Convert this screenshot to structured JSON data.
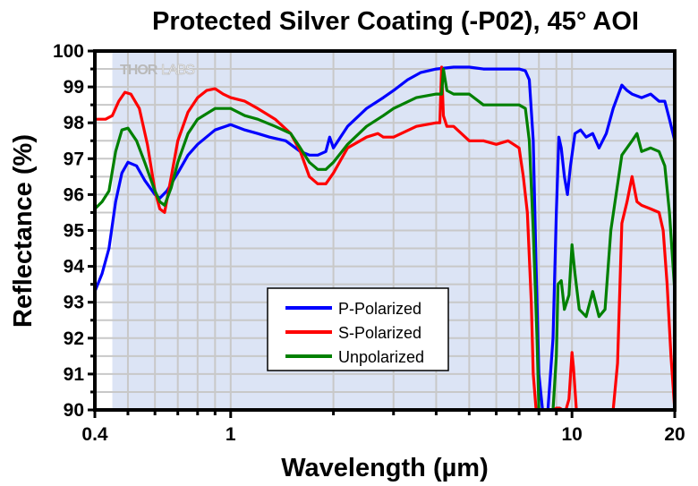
{
  "chart_data": {
    "type": "line",
    "title": "Protected Silver Coating (-P02), 45° AOI",
    "xlabel": "Wavelength (µm)",
    "ylabel": "Reflectance (%)",
    "xscale": "log",
    "xlim": [
      0.4,
      20
    ],
    "ylim": [
      90,
      100
    ],
    "shaded_band_x": [
      0.45,
      20
    ],
    "watermark": [
      "THOR",
      "LABS"
    ],
    "grid": true,
    "x_ticks": [
      {
        "value": 0.4,
        "label": "0.4"
      },
      {
        "value": 1,
        "label": "1"
      },
      {
        "value": 10,
        "label": "10"
      },
      {
        "value": 20,
        "label": "20"
      }
    ],
    "x_minor_ticks": [
      0.5,
      0.6,
      0.7,
      0.8,
      0.9,
      2,
      3,
      4,
      5,
      6,
      7,
      8,
      9
    ],
    "y_ticks": [
      {
        "value": 90,
        "label": "90"
      },
      {
        "value": 91,
        "label": "91"
      },
      {
        "value": 92,
        "label": "92"
      },
      {
        "value": 93,
        "label": "93"
      },
      {
        "value": 94,
        "label": "94"
      },
      {
        "value": 95,
        "label": "95"
      },
      {
        "value": 96,
        "label": "96"
      },
      {
        "value": 97,
        "label": "97"
      },
      {
        "value": 98,
        "label": "98"
      },
      {
        "value": 99,
        "label": "99"
      },
      {
        "value": 100,
        "label": "100"
      }
    ],
    "legend_position": "center-bottom",
    "series": [
      {
        "name": "P-Polarized",
        "color": "#0000ff",
        "x": [
          0.4,
          0.42,
          0.44,
          0.46,
          0.48,
          0.5,
          0.53,
          0.56,
          0.6,
          0.62,
          0.65,
          0.7,
          0.75,
          0.8,
          0.9,
          1.0,
          1.1,
          1.2,
          1.3,
          1.45,
          1.6,
          1.7,
          1.8,
          1.9,
          1.95,
          2.0,
          2.2,
          2.5,
          2.8,
          3.0,
          3.3,
          3.6,
          4.0,
          4.5,
          5.0,
          5.5,
          6.0,
          6.5,
          7.0,
          7.3,
          7.5,
          7.7,
          7.85,
          8.0,
          8.2,
          8.5,
          8.8,
          9.0,
          9.15,
          9.3,
          9.5,
          9.7,
          9.9,
          10.2,
          10.6,
          11.0,
          11.5,
          12.0,
          12.6,
          13.2,
          14.0,
          14.5,
          15.0,
          16.0,
          17.0,
          18.0,
          18.7,
          19.3,
          20.0
        ],
        "y": [
          93.3,
          93.8,
          94.5,
          95.8,
          96.6,
          96.9,
          96.8,
          96.4,
          96.0,
          95.9,
          96.1,
          96.6,
          97.1,
          97.4,
          97.8,
          97.95,
          97.8,
          97.7,
          97.6,
          97.5,
          97.2,
          97.1,
          97.1,
          97.2,
          97.6,
          97.3,
          97.9,
          98.4,
          98.7,
          98.9,
          99.2,
          99.4,
          99.5,
          99.55,
          99.55,
          99.5,
          99.5,
          99.5,
          99.5,
          99.45,
          99.2,
          97.5,
          94,
          91,
          90,
          90,
          92,
          95.5,
          97.6,
          97.3,
          96.5,
          96,
          96.8,
          97.7,
          97.8,
          97.6,
          97.7,
          97.3,
          97.7,
          98.4,
          99.05,
          98.9,
          98.8,
          98.7,
          98.8,
          98.6,
          98.6,
          98.1,
          97.5
        ]
      },
      {
        "name": "S-Polarized",
        "color": "#ff0000",
        "x": [
          0.4,
          0.43,
          0.45,
          0.47,
          0.49,
          0.51,
          0.54,
          0.57,
          0.6,
          0.62,
          0.64,
          0.67,
          0.7,
          0.75,
          0.8,
          0.85,
          0.9,
          0.95,
          1.0,
          1.1,
          1.2,
          1.35,
          1.5,
          1.6,
          1.7,
          1.8,
          1.9,
          2.0,
          2.2,
          2.5,
          2.7,
          2.8,
          3.0,
          3.5,
          4.0,
          4.1,
          4.15,
          4.2,
          4.3,
          4.5,
          5.0,
          5.5,
          6.0,
          6.5,
          7.0,
          7.2,
          7.4,
          7.6,
          7.7,
          7.85,
          8.0,
          8.4,
          8.8,
          9.0,
          9.2,
          9.4,
          9.6,
          9.8,
          10.0,
          10.1,
          10.3,
          10.6,
          11.0,
          11.5,
          12.0,
          12.4,
          12.8,
          13.2,
          13.6,
          14.0,
          14.5,
          15.0,
          15.5,
          16.0,
          17.0,
          18.0,
          18.5,
          19.0,
          19.5,
          20.0
        ],
        "y": [
          98.1,
          98.1,
          98.2,
          98.6,
          98.85,
          98.8,
          98.4,
          97.4,
          96.1,
          95.6,
          95.5,
          96.5,
          97.5,
          98.3,
          98.7,
          98.9,
          98.95,
          98.8,
          98.7,
          98.6,
          98.4,
          98.1,
          97.7,
          97.2,
          96.5,
          96.3,
          96.3,
          96.6,
          97.3,
          97.6,
          97.7,
          97.6,
          97.6,
          97.9,
          98.0,
          98.0,
          99.55,
          98.2,
          97.9,
          97.9,
          97.5,
          97.5,
          97.4,
          97.5,
          97.3,
          96.5,
          95.5,
          93,
          91,
          90,
          90,
          90,
          90,
          90.05,
          90.05,
          90,
          90,
          90.3,
          91.6,
          91.2,
          90,
          90,
          90,
          90,
          90,
          90,
          90,
          90,
          91.3,
          95.2,
          95.8,
          96.5,
          95.8,
          95.7,
          95.6,
          95.5,
          95.0,
          93.5,
          91.5,
          90
        ]
      },
      {
        "name": "Unpolarized",
        "color": "#008000",
        "x": [
          0.4,
          0.42,
          0.44,
          0.46,
          0.48,
          0.5,
          0.53,
          0.56,
          0.6,
          0.62,
          0.64,
          0.67,
          0.7,
          0.75,
          0.8,
          0.9,
          1.0,
          1.1,
          1.2,
          1.35,
          1.5,
          1.6,
          1.7,
          1.8,
          1.9,
          2.0,
          2.2,
          2.5,
          2.8,
          3.0,
          3.5,
          4.0,
          4.15,
          4.2,
          4.3,
          4.5,
          5.0,
          5.5,
          6.0,
          6.5,
          7.0,
          7.3,
          7.5,
          7.7,
          7.9,
          8.0,
          8.2,
          8.5,
          8.8,
          9.0,
          9.1,
          9.3,
          9.5,
          9.8,
          10.0,
          10.2,
          10.5,
          11.0,
          11.5,
          12.0,
          12.5,
          13.0,
          14.0,
          15.0,
          15.5,
          16.0,
          17.0,
          18.0,
          18.7,
          19.3,
          20.0
        ],
        "y": [
          95.6,
          95.8,
          96.1,
          97.2,
          97.8,
          97.85,
          97.5,
          96.9,
          96.1,
          95.8,
          95.7,
          96.2,
          96.9,
          97.7,
          98.1,
          98.4,
          98.4,
          98.2,
          98.1,
          97.9,
          97.7,
          97.3,
          96.9,
          96.7,
          96.7,
          96.9,
          97.4,
          97.9,
          98.2,
          98.4,
          98.7,
          98.8,
          98.8,
          99.5,
          98.9,
          98.8,
          98.8,
          98.5,
          98.5,
          98.5,
          98.5,
          98.4,
          97.5,
          95,
          92,
          90,
          90,
          90,
          90,
          91.5,
          93.5,
          93.6,
          92.8,
          93.2,
          94.6,
          93.8,
          92.8,
          92.6,
          93.3,
          92.6,
          92.8,
          95,
          97.1,
          97.5,
          97.7,
          97.2,
          97.3,
          97.2,
          96.8,
          95.5,
          93.3
        ]
      }
    ]
  }
}
